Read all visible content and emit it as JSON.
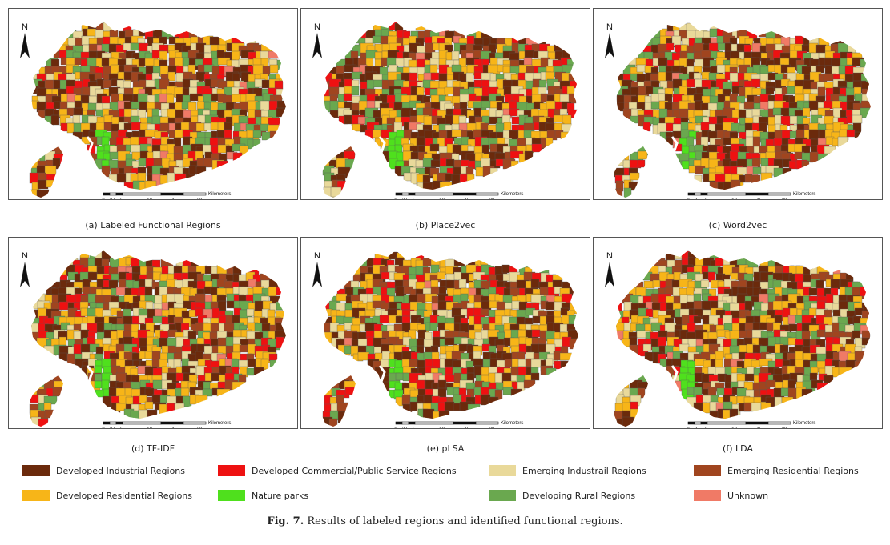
{
  "panels": [
    {
      "id": "a",
      "caption": "(a) Labeled Functional Regions",
      "seed": 11
    },
    {
      "id": "b",
      "caption": "(b) Place2vec",
      "seed": 23
    },
    {
      "id": "c",
      "caption": "(c) Word2vec",
      "seed": 37
    },
    {
      "id": "d",
      "caption": "(d) TF-IDF",
      "seed": 41
    },
    {
      "id": "e",
      "caption": "(e) pLSA",
      "seed": 53
    },
    {
      "id": "f",
      "caption": "(f) LDA",
      "seed": 67
    }
  ],
  "north_label": "N",
  "scale_bar": {
    "unit": "Kilometers",
    "ticks": [
      "0",
      "2.5",
      "5",
      "10",
      "15",
      "20"
    ]
  },
  "legend": [
    {
      "label": "Developed Industrial Regions",
      "color": "#6b2a0c"
    },
    {
      "label": "Developed Commercial/Public Service Regions",
      "color": "#ee1111"
    },
    {
      "label": "Emerging Industrail Regions",
      "color": "#e9d99a"
    },
    {
      "label": "Emerging Residential Regions",
      "color": "#a0451f"
    },
    {
      "label": "Developed Residential Regions",
      "color": "#f7b518"
    },
    {
      "label": "Nature parks",
      "color": "#4fe01d"
    },
    {
      "label": "Developing Rural Regions",
      "color": "#6aa84f"
    },
    {
      "label": "Unknown",
      "color": "#f07a66"
    }
  ],
  "figure_caption": {
    "label": "Fig. 7.",
    "text": " Results of labeled regions and identified functional regions."
  }
}
